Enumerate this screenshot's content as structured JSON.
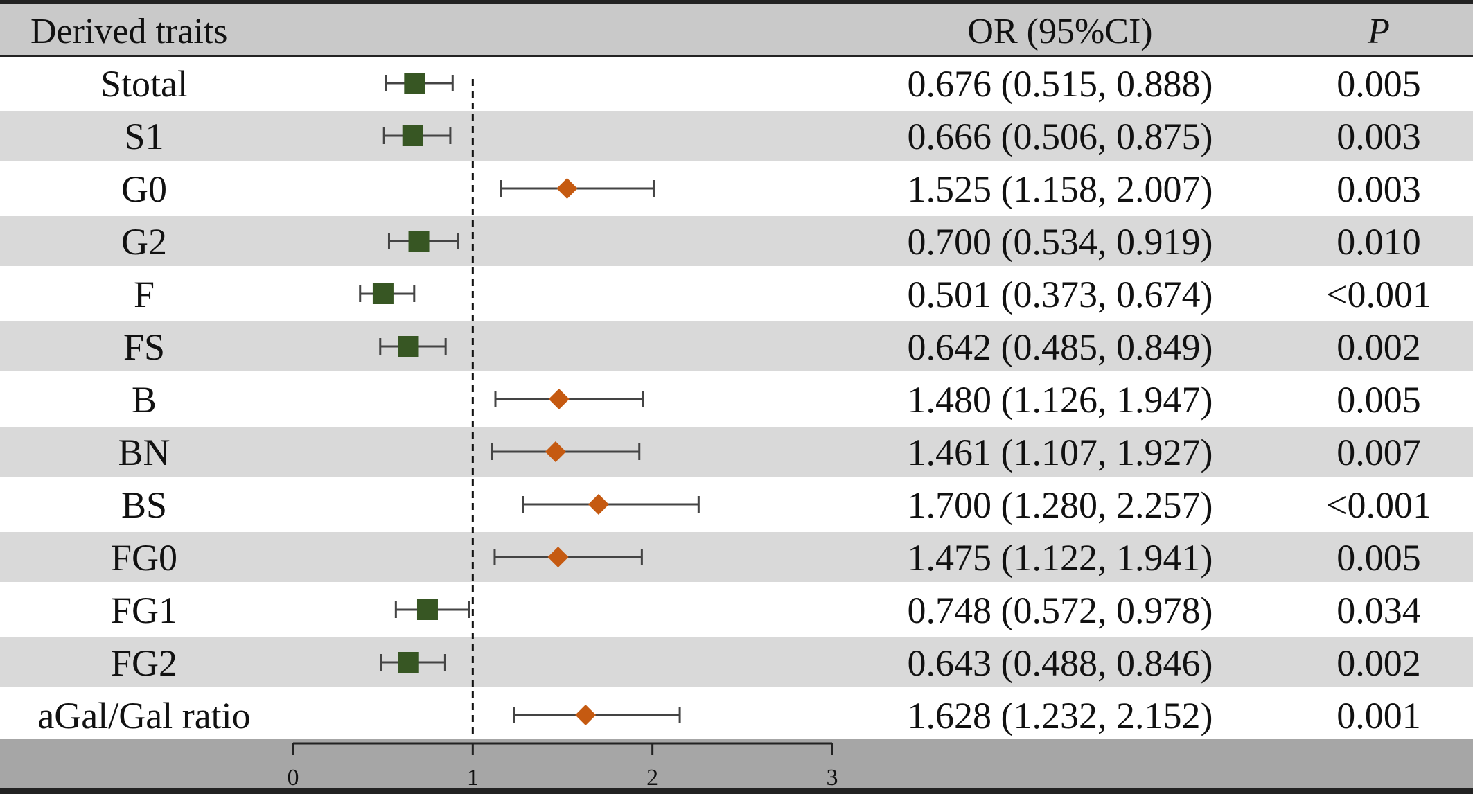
{
  "header": {
    "col_traits": "Derived traits",
    "col_or": "OR (95%CI)",
    "col_p": "P"
  },
  "chart_data": {
    "type": "forest",
    "reference_line": 1,
    "xlim": [
      0,
      3
    ],
    "x_ticks": [
      "0",
      "1",
      "2",
      "3"
    ],
    "colors": {
      "protective": "#375623",
      "risk": "#C55A11",
      "band": "#D9D9D9",
      "axis_band": "#A6A6A6",
      "whisker": "#444444"
    },
    "markers": {
      "protective": "square",
      "risk": "diamond"
    },
    "rows": [
      {
        "trait": "Stotal",
        "or": 0.676,
        "lo": 0.515,
        "hi": 0.888,
        "or_text": "0.676 (0.515, 0.888)",
        "p": "0.005"
      },
      {
        "trait": "S1",
        "or": 0.666,
        "lo": 0.506,
        "hi": 0.875,
        "or_text": "0.666 (0.506, 0.875)",
        "p": "0.003"
      },
      {
        "trait": "G0",
        "or": 1.525,
        "lo": 1.158,
        "hi": 2.007,
        "or_text": "1.525 (1.158, 2.007)",
        "p": "0.003"
      },
      {
        "trait": "G2",
        "or": 0.7,
        "lo": 0.534,
        "hi": 0.919,
        "or_text": "0.700 (0.534, 0.919)",
        "p": "0.010"
      },
      {
        "trait": "F",
        "or": 0.501,
        "lo": 0.373,
        "hi": 0.674,
        "or_text": "0.501 (0.373, 0.674)",
        "p": "<0.001"
      },
      {
        "trait": "FS",
        "or": 0.642,
        "lo": 0.485,
        "hi": 0.849,
        "or_text": "0.642 (0.485, 0.849)",
        "p": "0.002"
      },
      {
        "trait": "B",
        "or": 1.48,
        "lo": 1.126,
        "hi": 1.947,
        "or_text": "1.480 (1.126, 1.947)",
        "p": "0.005"
      },
      {
        "trait": "BN",
        "or": 1.461,
        "lo": 1.107,
        "hi": 1.927,
        "or_text": "1.461 (1.107, 1.927)",
        "p": "0.007"
      },
      {
        "trait": "BS",
        "or": 1.7,
        "lo": 1.28,
        "hi": 2.257,
        "or_text": "1.700 (1.280, 2.257)",
        "p": "<0.001"
      },
      {
        "trait": "FG0",
        "or": 1.475,
        "lo": 1.122,
        "hi": 1.941,
        "or_text": "1.475 (1.122, 1.941)",
        "p": "0.005"
      },
      {
        "trait": "FG1",
        "or": 0.748,
        "lo": 0.572,
        "hi": 0.978,
        "or_text": "0.748 (0.572, 0.978)",
        "p": "0.034"
      },
      {
        "trait": "FG2",
        "or": 0.643,
        "lo": 0.488,
        "hi": 0.846,
        "or_text": "0.643 (0.488, 0.846)",
        "p": "0.002"
      },
      {
        "trait": "aGal/Gal ratio",
        "or": 1.628,
        "lo": 1.232,
        "hi": 2.152,
        "or_text": "1.628 (1.232, 2.152)",
        "p": "0.001"
      }
    ]
  }
}
